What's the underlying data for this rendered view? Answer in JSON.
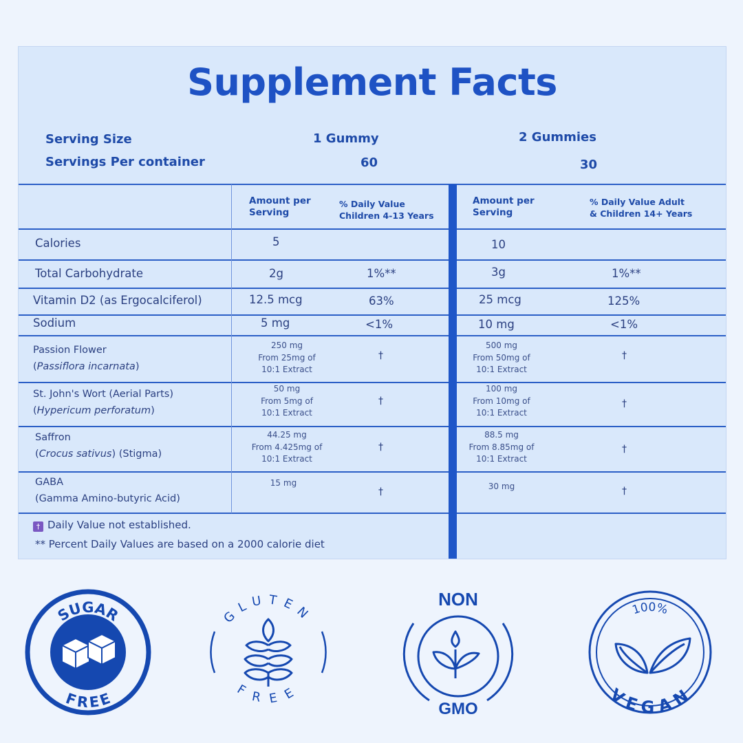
{
  "title": "Supplement Facts",
  "serving": {
    "size_label": "Serving Size",
    "per_container_label": "Servings Per container",
    "col1_size": "1 Gummy",
    "col1_count": "60",
    "col2_size": "2 Gummies",
    "col2_count": "30"
  },
  "columns": {
    "amount1": [
      "Amount per",
      "Serving"
    ],
    "dv1": [
      "% Daily Value",
      "Children 4-13 Years"
    ],
    "amount2": [
      "Amount per",
      "Serving"
    ],
    "dv2": [
      "% Daily Value Adult",
      "& Children 14+ Years"
    ]
  },
  "rows": [
    {
      "name": "Calories",
      "a1": "5",
      "d1": "",
      "a2": "10",
      "d2": ""
    },
    {
      "name": "Total Carbohydrate",
      "a1": "2g",
      "d1": "1%**",
      "a2": "3g",
      "d2": "1%**"
    },
    {
      "name": "Vitamin D2 (as Ergocalciferol)",
      "a1": "12.5 mcg",
      "d1": "63%",
      "a2": "25 mcg",
      "d2": "125%"
    },
    {
      "name": "Sodium",
      "a1": "5 mg",
      "d1": "<1%",
      "a2": "10 mg",
      "d2": "<1%"
    }
  ],
  "herbs": [
    {
      "name": "Passion Flower",
      "latin": "Passiflora incarnata",
      "suffix": "",
      "a1": [
        "250 mg",
        "From 25mg of",
        "10:1 Extract"
      ],
      "d1": "†",
      "a2": [
        "500 mg",
        "From 50mg of",
        "10:1 Extract"
      ],
      "d2": "†"
    },
    {
      "name": "St. John's Wort (Aerial Parts)",
      "latin": "Hypericum perforatum",
      "suffix": "",
      "a1": [
        "50 mg",
        "From 5mg of",
        "10:1 Extract"
      ],
      "d1": "†",
      "a2": [
        "100 mg",
        "From 10mg of",
        "10:1 Extract"
      ],
      "d2": "†"
    },
    {
      "name": "Saffron",
      "latin": "Crocus sativus",
      "suffix": " (Stigma)",
      "a1": [
        "44.25 mg",
        "From 4.425mg of",
        "10:1 Extract"
      ],
      "d1": "†",
      "a2": [
        "88.5 mg",
        "From 8.85mg of",
        "10:1 Extract"
      ],
      "d2": "†"
    }
  ],
  "gaba": {
    "name": "GABA",
    "full": "(Gamma Amino-butyric Acid)",
    "a1": "15 mg",
    "d1": "†",
    "a2": "30 mg",
    "d2": "†"
  },
  "footnotes": {
    "dagger_glyph": "†",
    "dagger_note": "Daily Value not established.",
    "percent_note": "** Percent Daily Values are based on a 2000 calorie diet"
  },
  "badges": {
    "sugar_top": "SUGAR",
    "sugar_bottom": "FREE",
    "gluten_top": "GLUTEN",
    "gluten_bottom": "FREE",
    "gmo_top": "NON",
    "gmo_bottom": "GMO",
    "vegan_top": "100%",
    "vegan_bottom": "VEGAN"
  },
  "colors": {
    "accent": "#1e56c8",
    "panel": "#d9e8fb",
    "badge": "#1548b0"
  }
}
